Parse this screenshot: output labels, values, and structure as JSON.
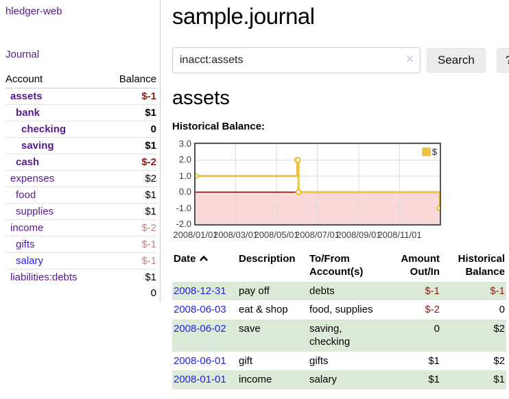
{
  "colors": {
    "link_purple": "#551a8b",
    "link_blue": "#2222dd",
    "negative_strong": "#8b1a10",
    "negative_dim": "#c08383",
    "row_stripe_green": "#dcebd8",
    "series_gold": "#edc240",
    "negative_region_pink": "#f9d8d8",
    "zero_line_red": "#990000"
  },
  "sidebar": {
    "brand": "hledger-web",
    "journal_link": "Journal",
    "accounts_table": {
      "headers": {
        "account": "Account",
        "balance": "Balance"
      },
      "rows": [
        {
          "name": "assets",
          "indent": 1,
          "bold": true,
          "balance": "$-1",
          "balance_style": "neg-strong"
        },
        {
          "name": "bank",
          "indent": 2,
          "bold": true,
          "balance": "$1",
          "balance_style": "pos-strong"
        },
        {
          "name": "checking",
          "indent": 3,
          "bold": true,
          "balance": "0",
          "balance_style": "pos-strong"
        },
        {
          "name": "saving",
          "indent": 3,
          "bold": true,
          "balance": "$1",
          "balance_style": "pos-strong"
        },
        {
          "name": "cash",
          "indent": 2,
          "bold": true,
          "balance": "$-2",
          "balance_style": "neg-strong"
        },
        {
          "name": "expenses",
          "indent": 1,
          "bold": false,
          "balance": "$2",
          "balance_style": "pos"
        },
        {
          "name": "food",
          "indent": 2,
          "bold": false,
          "balance": "$1",
          "balance_style": "pos"
        },
        {
          "name": "supplies",
          "indent": 2,
          "bold": false,
          "balance": "$1",
          "balance_style": "pos"
        },
        {
          "name": "income",
          "indent": 1,
          "bold": false,
          "balance": "$-2",
          "balance_style": "neg-dim"
        },
        {
          "name": "gifts",
          "indent": 2,
          "bold": false,
          "balance": "$-1",
          "balance_style": "neg-dim"
        },
        {
          "name": "salary",
          "indent": 2,
          "bold": false,
          "link_style": "blue",
          "balance": "$-1",
          "balance_style": "neg-dim"
        },
        {
          "name": "liabilities:debts",
          "indent": 1,
          "bold": false,
          "balance": "$1",
          "balance_style": "pos"
        }
      ],
      "total": "0"
    }
  },
  "header": {
    "title": "sample.journal"
  },
  "search": {
    "value": "inacct:assets",
    "clear_icon": "×",
    "button_label": "Search",
    "help_label": "?"
  },
  "account_page": {
    "title": "assets",
    "chart_label": "Historical Balance:"
  },
  "chart_data": {
    "type": "line",
    "title": "Historical Balance:",
    "series": [
      {
        "name": "$",
        "color": "#edc240",
        "step": true,
        "points": [
          [
            "2008-01-01",
            1
          ],
          [
            "2008-06-01",
            2
          ],
          [
            "2008-06-02",
            2
          ],
          [
            "2008-06-03",
            0
          ],
          [
            "2008-12-31",
            -1
          ]
        ]
      }
    ],
    "x_ticks": [
      "2008/01/01",
      "2008/03/01",
      "2008/05/01",
      "2008/07/01",
      "2008/09/01",
      "2008/11/01"
    ],
    "y_ticks": [
      3.0,
      2.0,
      1.0,
      0.0,
      -1.0,
      -2.0
    ],
    "ylim": [
      -2.0,
      3.0
    ],
    "x_range": [
      "2008-01-01",
      "2008-12-31"
    ],
    "grid": true,
    "legend_position": "top-right",
    "negative_region_color": "#f9d8d8",
    "zero_line_color": "#990000"
  },
  "register": {
    "headers": [
      {
        "label": "Date",
        "sorted": "asc",
        "align": "left"
      },
      {
        "label": "Description",
        "align": "left"
      },
      {
        "label": "To/From Account(s)",
        "align": "left"
      },
      {
        "label": "Amount Out/In",
        "align": "right"
      },
      {
        "label": "Historical Balance",
        "align": "right"
      }
    ],
    "rows": [
      {
        "date": "2008-12-31",
        "description": "pay off",
        "accounts": "debts",
        "amount": "$-1",
        "amount_neg": true,
        "balance": "$-1",
        "balance_neg": true,
        "striped": true
      },
      {
        "date": "2008-06-03",
        "description": "eat & shop",
        "accounts": "food, supplies",
        "amount": "$-2",
        "amount_neg": true,
        "balance": "0",
        "balance_neg": false,
        "striped": false
      },
      {
        "date": "2008-06-02",
        "description": "save",
        "accounts": "saving, checking",
        "amount": "0",
        "amount_neg": false,
        "balance": "$2",
        "balance_neg": false,
        "striped": true
      },
      {
        "date": "2008-06-01",
        "description": "gift",
        "accounts": "gifts",
        "amount": "$1",
        "amount_neg": false,
        "balance": "$2",
        "balance_neg": false,
        "striped": false
      },
      {
        "date": "2008-01-01",
        "description": "income",
        "accounts": "salary",
        "amount": "$1",
        "amount_neg": false,
        "balance": "$1",
        "balance_neg": false,
        "striped": true
      }
    ]
  }
}
